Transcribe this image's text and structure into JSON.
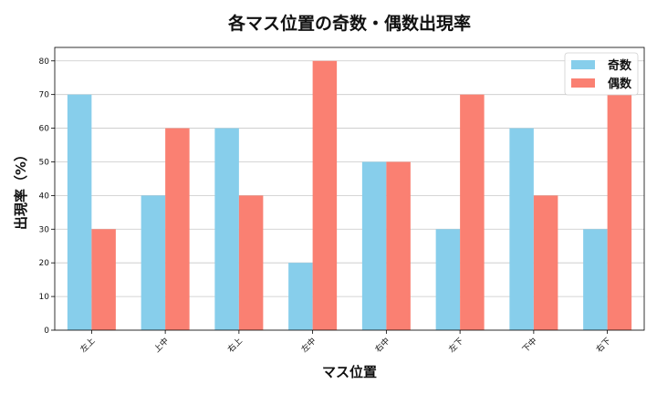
{
  "chart_data": {
    "type": "bar",
    "title": "各マス位置の奇数・偶数出現率",
    "xlabel": "マス位置",
    "ylabel": "出現率（%）",
    "categories": [
      "左上",
      "上中",
      "右上",
      "左中",
      "右中",
      "左下",
      "下中",
      "右下"
    ],
    "series": [
      {
        "name": "奇数",
        "color": "#87CEEB",
        "values": [
          70,
          40,
          60,
          20,
          50,
          30,
          60,
          30
        ]
      },
      {
        "name": "偶数",
        "color": "#FA8072",
        "values": [
          30,
          60,
          40,
          80,
          50,
          70,
          40,
          70
        ]
      }
    ],
    "ylim": [
      0,
      84
    ],
    "yticks": [
      0,
      10,
      20,
      30,
      40,
      50,
      60,
      70,
      80
    ],
    "grid": "y",
    "legend_position": "top-right"
  }
}
